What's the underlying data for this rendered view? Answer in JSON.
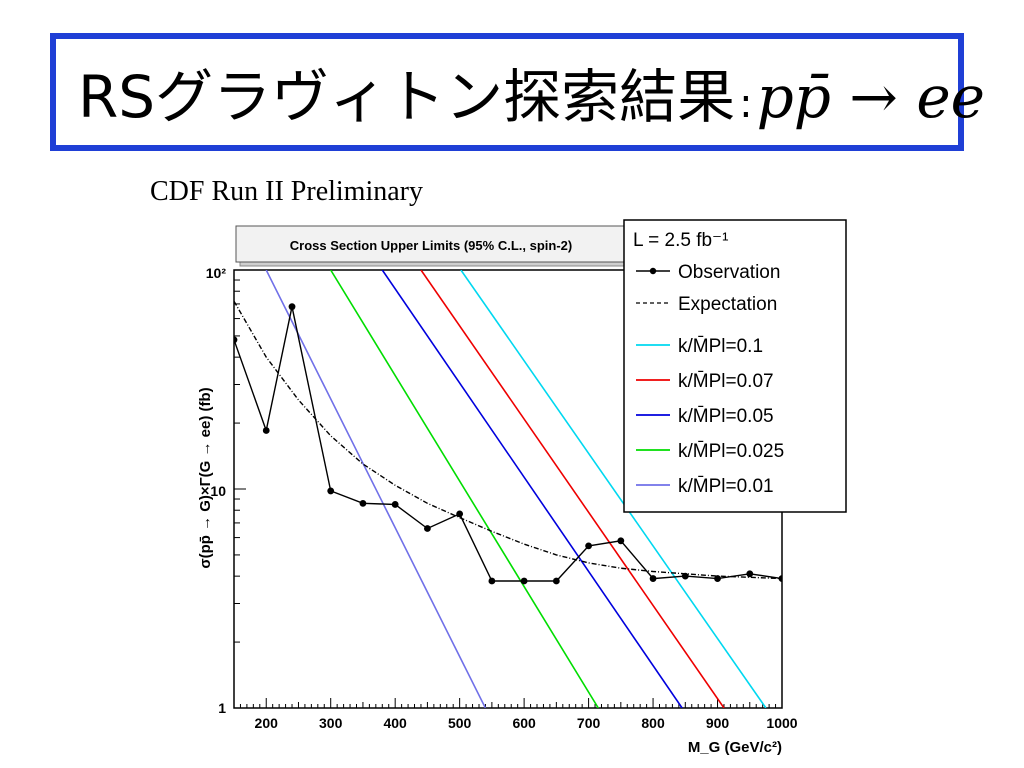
{
  "slide": {
    "title_text": "RSグラヴィトン探索結果",
    "title_colon": ":",
    "title_reaction": "pp̄ → ee"
  },
  "chart_data": {
    "type": "line",
    "collaboration_label": "CDF Run II Preliminary",
    "title": "Cross Section Upper Limits (95% C.L., spin-2)",
    "xlabel": "M_G (GeV/c²)",
    "ylabel": "σ(pp̄ → G)×Γ(G → ee) (fb)",
    "xlim": [
      150,
      1000
    ],
    "ylim": [
      1,
      100
    ],
    "yscale": "log",
    "x_ticks": [
      200,
      300,
      400,
      500,
      600,
      700,
      800,
      900,
      1000
    ],
    "x_tick_labels": [
      "200",
      "300",
      "400",
      "500",
      "600",
      "700",
      "800",
      "900",
      "1000"
    ],
    "y_tick_labels": [
      "1",
      "10",
      "10²"
    ],
    "legend": {
      "placement": "top-right",
      "luminosity": "L = 2.5 fb⁻¹",
      "observation": "Observation",
      "expectation": "Expectation"
    },
    "series": [
      {
        "name": "Observation",
        "style": "solid-with-markers",
        "color": "#000000",
        "x": [
          150,
          200,
          240,
          300,
          350,
          400,
          450,
          500,
          550,
          600,
          650,
          700,
          750,
          800,
          850,
          900,
          950,
          1000
        ],
        "y": [
          48,
          18.5,
          68,
          9.8,
          8.6,
          8.5,
          6.6,
          7.7,
          3.8,
          3.8,
          3.8,
          5.5,
          5.8,
          3.9,
          4.0,
          3.9,
          4.1,
          3.9
        ]
      },
      {
        "name": "Expectation",
        "style": "dashed",
        "color": "#000000",
        "x": [
          150,
          200,
          250,
          300,
          350,
          400,
          450,
          500,
          550,
          600,
          650,
          700,
          750,
          800,
          850,
          900,
          950,
          1000
        ],
        "y": [
          72,
          40,
          25.5,
          17.5,
          13,
          10.4,
          8.6,
          7.4,
          6.4,
          5.6,
          5.0,
          4.6,
          4.35,
          4.2,
          4.1,
          4.0,
          3.95,
          3.9
        ]
      },
      {
        "name": "k/M̄Pl=0.1",
        "color": "#00d8f0",
        "x": [
          502,
          975
        ],
        "y": [
          100,
          1
        ]
      },
      {
        "name": "k/M̄Pl=0.07",
        "color": "#ee0000",
        "x": [
          440,
          910
        ],
        "y": [
          100,
          1
        ]
      },
      {
        "name": "k/M̄Pl=0.05",
        "color": "#0000dd",
        "x": [
          380,
          845
        ],
        "y": [
          100,
          1
        ]
      },
      {
        "name": "k/M̄Pl=0.025",
        "color": "#00dd00",
        "x": [
          300,
          715
        ],
        "y": [
          100,
          1
        ]
      },
      {
        "name": "k/M̄Pl=0.01",
        "color": "#7070e8",
        "x": [
          200,
          540
        ],
        "y": [
          100,
          1
        ]
      }
    ]
  }
}
